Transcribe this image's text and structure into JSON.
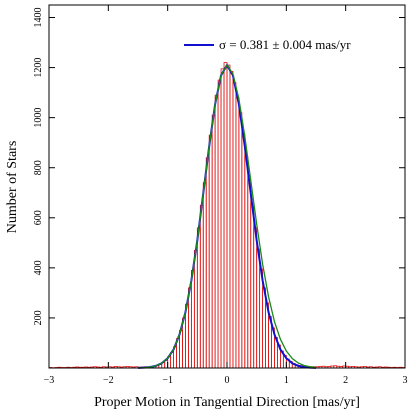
{
  "chart_data": {
    "type": "histogram",
    "xlabel": "Proper Motion in Tangential Direction [mas/yr]",
    "ylabel": "Number of Stars",
    "xlim": [
      -3,
      3
    ],
    "ylim": [
      0,
      1450
    ],
    "xticks": [
      {
        "value": -3,
        "label": "−3"
      },
      {
        "value": -2,
        "label": "−2"
      },
      {
        "value": -1,
        "label": "−1"
      },
      0,
      1,
      2,
      3
    ],
    "yticks": [
      200,
      400,
      600,
      800,
      1000,
      1200,
      1400
    ],
    "color": "#e01010",
    "bins": [
      -3,
      -2.95,
      -2.9,
      -2.85,
      -2.8,
      -2.75,
      -2.7,
      -2.65,
      -2.6,
      -2.55,
      -2.5,
      -2.45,
      -2.4,
      -2.35,
      -2.3,
      -2.25,
      -2.2,
      -2.15,
      -2.1,
      -2.05,
      -2,
      -1.95,
      -1.9,
      -1.85,
      -1.8,
      -1.75,
      -1.7,
      -1.65,
      -1.6,
      -1.55,
      -1.5,
      -1.45,
      -1.4,
      -1.35,
      -1.3,
      -1.25,
      -1.2,
      -1.15,
      -1.1,
      -1.05,
      -1,
      -0.95,
      -0.9,
      -0.85,
      -0.8,
      -0.75,
      -0.7,
      -0.65,
      -0.6,
      -0.55,
      -0.5,
      -0.45,
      -0.4,
      -0.35,
      -0.3,
      -0.25,
      -0.2,
      -0.15,
      -0.1,
      -0.05,
      0,
      0.05,
      0.1,
      0.15,
      0.2,
      0.25,
      0.3,
      0.35,
      0.4,
      0.45,
      0.5,
      0.55,
      0.6,
      0.65,
      0.7,
      0.75,
      0.8,
      0.85,
      0.9,
      0.95,
      1,
      1.05,
      1.1,
      1.15,
      1.2,
      1.25,
      1.3,
      1.35,
      1.4,
      1.45,
      1.5,
      1.55,
      1.6,
      1.65,
      1.7,
      1.75,
      1.8,
      1.85,
      1.9,
      1.95,
      2,
      2.05,
      2.1,
      2.15,
      2.2,
      2.25,
      2.3,
      2.35,
      2.4,
      2.45,
      2.5,
      2.55,
      2.6,
      2.65,
      2.7,
      2.75,
      2.8,
      2.85,
      2.9,
      2.95,
      3
    ],
    "counts": [
      2,
      1,
      2,
      3,
      2,
      2,
      3,
      2,
      3,
      4,
      3,
      3,
      4,
      3,
      4,
      5,
      4,
      3,
      5,
      4,
      5,
      4,
      6,
      5,
      4,
      5,
      6,
      5,
      4,
      5,
      3,
      4,
      5,
      4,
      6,
      8,
      10,
      14,
      22,
      30,
      45,
      62,
      85,
      118,
      150,
      200,
      255,
      320,
      390,
      470,
      560,
      650,
      740,
      840,
      930,
      1010,
      1090,
      1150,
      1195,
      1220,
      1210,
      1185,
      1140,
      1080,
      1020,
      935,
      845,
      750,
      655,
      560,
      475,
      395,
      320,
      260,
      205,
      160,
      122,
      92,
      68,
      50,
      36,
      26,
      18,
      13,
      10,
      8,
      7,
      6,
      5,
      5,
      5,
      6,
      7,
      5,
      6,
      8,
      9,
      7,
      6,
      8,
      7,
      5,
      6,
      5,
      4,
      5,
      6,
      4,
      5,
      3,
      4,
      5,
      3,
      4,
      3,
      2,
      3,
      2,
      3,
      2
    ],
    "series": [
      {
        "name": "σ = 0.381 ± 0.004 mas/yr",
        "color": "#1010d0",
        "x": [
          -1.5,
          -1.4,
          -1.3,
          -1.2,
          -1.1,
          -1,
          -0.9,
          -0.8,
          -0.7,
          -0.6,
          -0.5,
          -0.4,
          -0.3,
          -0.2,
          -0.1,
          0,
          0.1,
          0.2,
          0.3,
          0.4,
          0.5,
          0.6,
          0.7,
          0.8,
          0.9,
          1,
          1.1,
          1.2,
          1.3,
          1.4,
          1.5
        ],
        "values": [
          0.5,
          1.4,
          3.6,
          8.5,
          19,
          39,
          74,
          134,
          223,
          350,
          510,
          698,
          886,
          1054,
          1169,
          1210,
          1169,
          1054,
          886,
          698,
          510,
          350,
          223,
          134,
          74,
          39,
          19,
          8.5,
          3.6,
          1.4,
          0.5
        ]
      },
      {
        "color": "#1a8a1a",
        "x": [
          -1.5,
          -1.4,
          -1.3,
          -1.2,
          -1.1,
          -1,
          -0.9,
          -0.8,
          -0.7,
          -0.6,
          -0.5,
          -0.4,
          -0.3,
          -0.2,
          -0.1,
          0,
          0.1,
          0.2,
          0.3,
          0.4,
          0.5,
          0.6,
          0.7,
          0.8,
          0.9,
          1,
          1.1,
          1.2,
          1.3,
          1.4,
          1.5
        ],
        "values": [
          0.5,
          1.4,
          3.6,
          8.5,
          19,
          39,
          74,
          134,
          223,
          350,
          510,
          698,
          886,
          1054,
          1169,
          1210,
          1175,
          1075,
          925,
          750,
          575,
          415,
          285,
          185,
          115,
          68,
          38,
          20,
          10,
          5,
          2
        ]
      }
    ],
    "legend": "upper right"
  }
}
